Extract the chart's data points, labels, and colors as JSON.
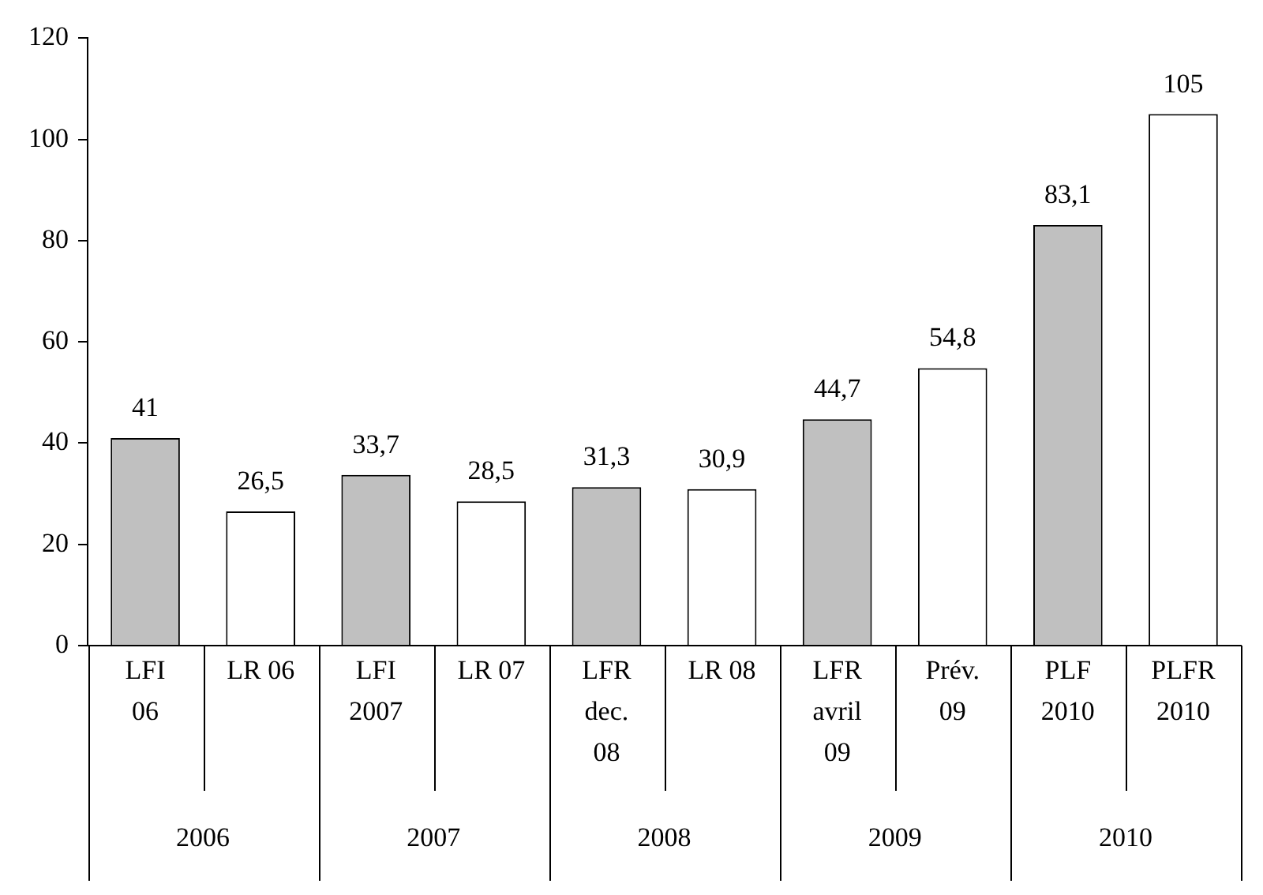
{
  "chart_data": {
    "type": "bar",
    "categories": [
      "LFI\n06",
      "LR 06",
      "LFI\n2007",
      "LR 07",
      "LFR\ndec.\n08",
      "LR 08",
      "LFR\navril\n09",
      "Prév.\n09",
      "PLF\n2010",
      "PLFR\n2010"
    ],
    "values": [
      41,
      26.5,
      33.7,
      28.5,
      31.3,
      30.9,
      44.7,
      54.8,
      83.1,
      105
    ],
    "colors": [
      "#c0c0c0",
      "#ffffff",
      "#c0c0c0",
      "#ffffff",
      "#c0c0c0",
      "#ffffff",
      "#c0c0c0",
      "#ffffff",
      "#c0c0c0",
      "#ffffff"
    ],
    "value_labels": [
      "41",
      "26,5",
      "33,7",
      "28,5",
      "31,3",
      "30,9",
      "44,7",
      "54,8",
      "83,1",
      "105"
    ],
    "annotations": [
      "2006",
      "2007",
      "2008",
      "2009",
      "2010"
    ],
    "ylim": [
      0,
      120
    ],
    "yticks": [
      0,
      20,
      40,
      60,
      80,
      100,
      120
    ],
    "grid": false,
    "legend": false
  }
}
